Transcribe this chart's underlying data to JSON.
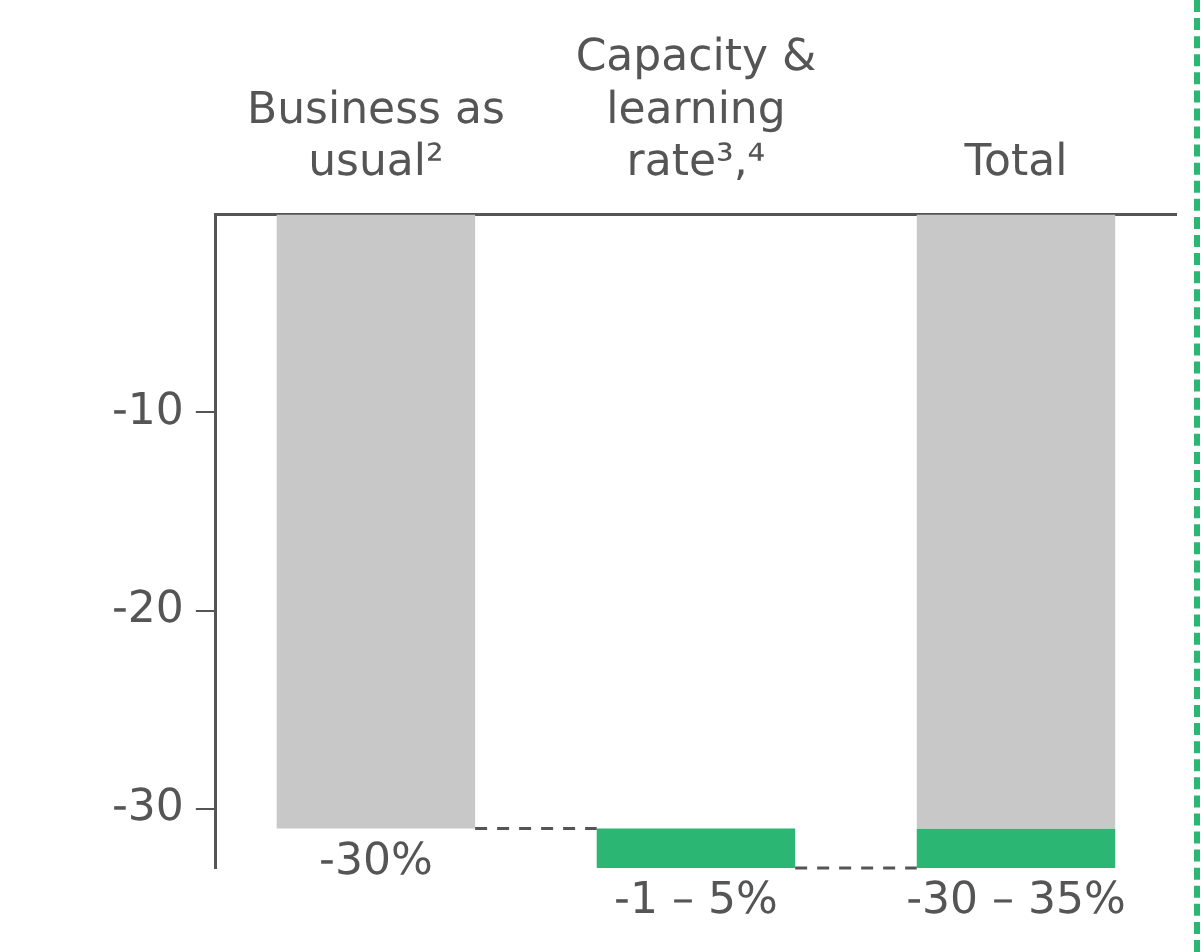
{
  "chart_data": {
    "type": "bar",
    "categories": [
      "Business as usual²",
      "Capacity & learning rate³,⁴",
      "Total"
    ],
    "series": [
      {
        "color": "#c8c8c8",
        "values": [
          -31,
          null,
          -31
        ],
        "base": [
          0,
          null,
          0
        ]
      },
      {
        "color": "#2bb673",
        "values": [
          null,
          -2,
          -2
        ],
        "base": [
          null,
          -31,
          -31
        ]
      }
    ],
    "ylim": [
      -33,
      0
    ],
    "yticks": [
      -10,
      -20,
      -30
    ],
    "grid": false,
    "legend": false,
    "annotations": [
      {
        "text": "-30%",
        "x": "Business as usual²",
        "y": -31
      },
      {
        "text": "-1 – 5%",
        "x": "Capacity & learning rate³,⁴",
        "y": -33
      },
      {
        "text": "-30 – 35%",
        "x": "Total",
        "y": -33
      }
    ]
  }
}
